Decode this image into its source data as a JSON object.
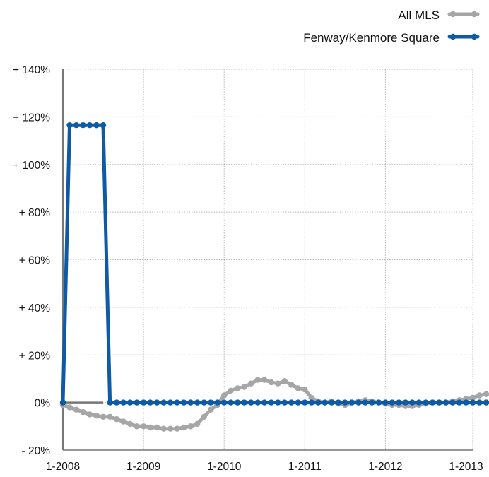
{
  "chart_data": {
    "type": "line",
    "title": "",
    "xlabel": "",
    "ylabel": "",
    "x_tick_labels": [
      "1-2008",
      "1-2009",
      "1-2010",
      "1-2011",
      "1-2012",
      "1-2013"
    ],
    "y_tick_labels": [
      "- 20%",
      "0%",
      "+ 20%",
      "+ 40%",
      "+ 60%",
      "+ 80%",
      "+ 100%",
      "+ 120%",
      "+ 140%"
    ],
    "y_tick_values": [
      -20,
      0,
      20,
      40,
      60,
      80,
      100,
      120,
      140
    ],
    "ylim": [
      -20,
      140
    ],
    "x_range_months": [
      0,
      61
    ],
    "grid": "dotted",
    "legend_position": "top-right",
    "series": [
      {
        "name": "All MLS",
        "color": "#a6a6a6",
        "values": [
          -1,
          -2,
          -3,
          -4,
          -5,
          -5.5,
          -6,
          -6,
          -7,
          -8,
          -9,
          -10,
          -10,
          -10.5,
          -10.5,
          -11,
          -11,
          -11,
          -10.5,
          -10,
          -9,
          -6,
          -3,
          -1,
          3,
          5,
          6,
          6.5,
          8,
          9.5,
          9.5,
          8.5,
          8,
          9,
          7.5,
          6,
          5.5,
          2,
          0.5,
          0,
          0.5,
          -0.5,
          -1,
          0,
          0.5,
          1,
          0.5,
          0,
          -0.5,
          -1,
          -1,
          -1.5,
          -1.5,
          -1,
          -0.5,
          0,
          0,
          0,
          0.5,
          1,
          1.5,
          2,
          3,
          3.5
        ]
      },
      {
        "name": "Fenway/Kenmore Square",
        "color": "#0f5aa5",
        "values": [
          0,
          116.5,
          116.5,
          116.5,
          116.5,
          116.5,
          116.5,
          0,
          0,
          0,
          0,
          0,
          0,
          0,
          0,
          0,
          0,
          0,
          0,
          0,
          0,
          0,
          0,
          0,
          0,
          0,
          0,
          0,
          0,
          0,
          0,
          0,
          0,
          0,
          0,
          0,
          0,
          0,
          0,
          0,
          0,
          0,
          0,
          0,
          0,
          0,
          0,
          0,
          0,
          0,
          0,
          0,
          0,
          0,
          0,
          0,
          0,
          0,
          0,
          0,
          0,
          0,
          0,
          0
        ]
      }
    ]
  }
}
